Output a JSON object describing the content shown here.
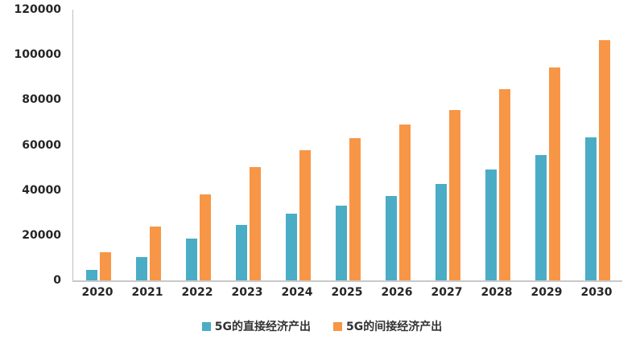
{
  "chart_data": {
    "type": "bar",
    "title": "",
    "xlabel": "",
    "ylabel": "",
    "categories": [
      "2020",
      "2021",
      "2022",
      "2023",
      "2024",
      "2025",
      "2026",
      "2027",
      "2028",
      "2029",
      "2030"
    ],
    "series": [
      {
        "name": "5G的直接经济产出",
        "color": "#4BACC6",
        "values": [
          4800,
          10500,
          18400,
          24700,
          29400,
          33000,
          37400,
          42600,
          49000,
          55700,
          63300
        ]
      },
      {
        "name": "5G的间接经济产出",
        "color": "#F79646",
        "values": [
          12300,
          23900,
          38000,
          50100,
          57600,
          63000,
          69200,
          75500,
          84700,
          94500,
          106400
        ]
      }
    ],
    "ylim": [
      0,
      120000
    ],
    "y_ticks": [
      0,
      20000,
      40000,
      60000,
      80000,
      100000,
      120000
    ],
    "grid": false,
    "legend_position": "bottom",
    "axis_line_color": "#BFBFBF",
    "label_color": "#262626"
  }
}
